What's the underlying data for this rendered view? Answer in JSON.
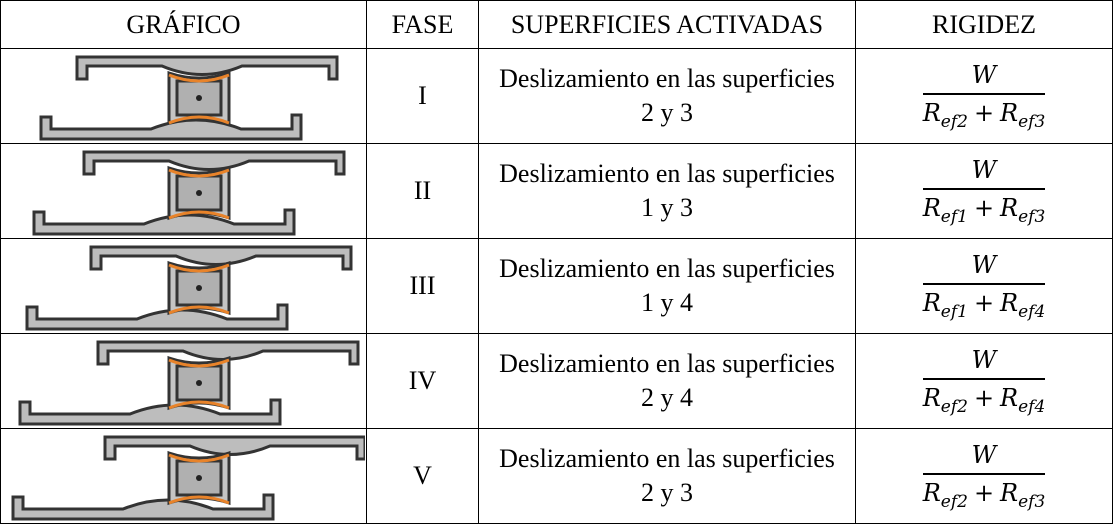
{
  "table": {
    "header": [
      "GRÁFICO",
      "FASE",
      "SUPERFICIES ACTIVADAS",
      "RIGIDEZ"
    ],
    "rows": [
      {
        "phase": "I",
        "description": [
          "Deslizamiento en las superficies",
          "2 y 3"
        ],
        "stiffness": {
          "numerator": "W",
          "terms": [
            {
              "symbol": "R",
              "subscript": "ef2"
            },
            {
              "symbol": "R",
              "subscript": "ef3"
            }
          ],
          "operator": "+"
        }
      },
      {
        "phase": "II",
        "description": [
          "Deslizamiento en las superficies",
          "1 y 3"
        ],
        "stiffness": {
          "numerator": "W",
          "terms": [
            {
              "symbol": "R",
              "subscript": "ef1"
            },
            {
              "symbol": "R",
              "subscript": "ef3"
            }
          ],
          "operator": "+"
        }
      },
      {
        "phase": "III",
        "description": [
          "Deslizamiento en las superficies",
          "1 y 4"
        ],
        "stiffness": {
          "numerator": "W",
          "terms": [
            {
              "symbol": "R",
              "subscript": "ef1"
            },
            {
              "symbol": "R",
              "subscript": "ef4"
            }
          ],
          "operator": "+"
        }
      },
      {
        "phase": "IV",
        "description": [
          "Deslizamiento en las superficies",
          "2 y 4"
        ],
        "stiffness": {
          "numerator": "W",
          "terms": [
            {
              "symbol": "R",
              "subscript": "ef2"
            },
            {
              "symbol": "R",
              "subscript": "ef4"
            }
          ],
          "operator": "+"
        }
      },
      {
        "phase": "V",
        "description": [
          "Deslizamiento en las superficies",
          "2 y 3"
        ],
        "stiffness": {
          "numerator": "W",
          "terms": [
            {
              "symbol": "R",
              "subscript": "ef2"
            },
            {
              "symbol": "R",
              "subscript": "ef3"
            }
          ],
          "operator": "+"
        }
      }
    ]
  }
}
